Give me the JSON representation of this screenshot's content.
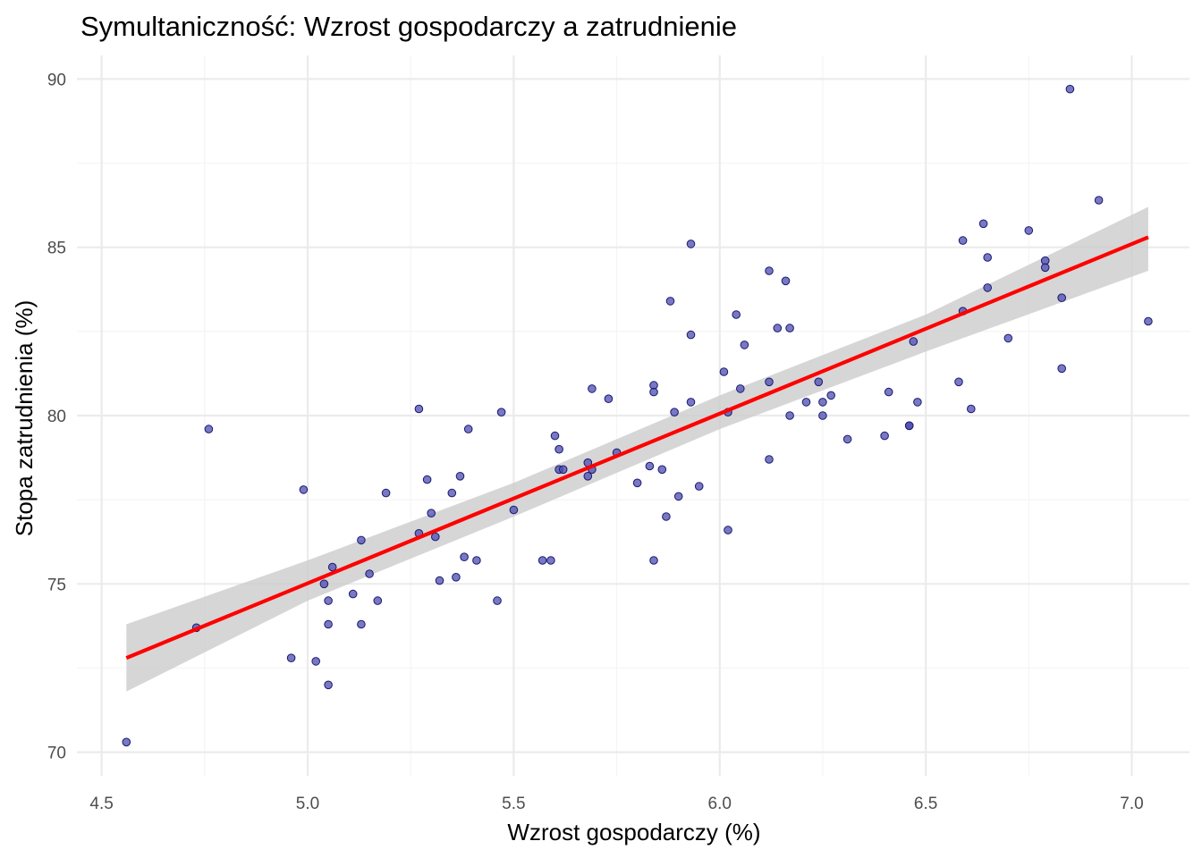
{
  "chart_data": {
    "type": "scatter",
    "title": "Symultaniczność: Wzrost gospodarczy a zatrudnienie",
    "xlabel": "Wzrost gospodarczy (%)",
    "ylabel": "Stopa zatrudnienia (%)",
    "xlim": [
      4.44,
      7.14
    ],
    "ylim": [
      69.3,
      90.7
    ],
    "x_ticks": [
      4.5,
      5.0,
      5.5,
      6.0,
      6.5,
      7.0
    ],
    "x_tick_labels": [
      "4.5",
      "5.0",
      "5.5",
      "6.0",
      "6.5",
      "7.0"
    ],
    "y_ticks": [
      70,
      75,
      80,
      85,
      90
    ],
    "y_tick_labels": [
      "70",
      "75",
      "80",
      "85",
      "90"
    ],
    "grid": true,
    "colors": {
      "points_fill": "#4b4bb0",
      "points_stroke": "#1a1a70",
      "fit_line": "#ff0000",
      "confidence_band": "#cccccc",
      "grid_major": "#ebebeb",
      "grid_minor": "#f4f4f4"
    },
    "fit_line": {
      "x": [
        4.56,
        7.04
      ],
      "y": [
        72.8,
        85.3
      ]
    },
    "confidence_band": {
      "x": [
        4.56,
        5.0,
        5.5,
        6.0,
        6.5,
        7.04
      ],
      "lower": [
        71.8,
        74.5,
        77.0,
        79.6,
        81.9,
        84.3
      ],
      "upper": [
        73.8,
        75.7,
        78.0,
        80.6,
        83.0,
        86.2
      ]
    },
    "series": [
      {
        "points": [
          [
            4.56,
            70.3
          ],
          [
            4.73,
            73.7
          ],
          [
            4.76,
            79.6
          ],
          [
            4.96,
            72.8
          ],
          [
            4.99,
            77.8
          ],
          [
            5.02,
            72.7
          ],
          [
            5.04,
            75.0
          ],
          [
            5.05,
            72.0
          ],
          [
            5.05,
            73.8
          ],
          [
            5.05,
            74.5
          ],
          [
            5.06,
            75.5
          ],
          [
            5.11,
            74.7
          ],
          [
            5.13,
            73.8
          ],
          [
            5.13,
            76.3
          ],
          [
            5.15,
            75.3
          ],
          [
            5.17,
            74.5
          ],
          [
            5.19,
            77.7
          ],
          [
            5.27,
            80.2
          ],
          [
            5.27,
            76.5
          ],
          [
            5.29,
            78.1
          ],
          [
            5.3,
            77.1
          ],
          [
            5.31,
            76.4
          ],
          [
            5.32,
            75.1
          ],
          [
            5.35,
            77.7
          ],
          [
            5.36,
            75.2
          ],
          [
            5.37,
            78.2
          ],
          [
            5.38,
            75.8
          ],
          [
            5.39,
            79.6
          ],
          [
            5.41,
            75.7
          ],
          [
            5.46,
            74.5
          ],
          [
            5.47,
            80.1
          ],
          [
            5.5,
            77.2
          ],
          [
            5.57,
            75.7
          ],
          [
            5.59,
            75.7
          ],
          [
            5.6,
            79.4
          ],
          [
            5.61,
            79.0
          ],
          [
            5.61,
            78.4
          ],
          [
            5.62,
            78.4
          ],
          [
            5.68,
            78.6
          ],
          [
            5.68,
            78.2
          ],
          [
            5.69,
            80.8
          ],
          [
            5.69,
            78.4
          ],
          [
            5.73,
            80.5
          ],
          [
            5.75,
            78.9
          ],
          [
            5.8,
            78.0
          ],
          [
            5.83,
            78.5
          ],
          [
            5.84,
            80.9
          ],
          [
            5.84,
            80.7
          ],
          [
            5.84,
            75.7
          ],
          [
            5.86,
            78.4
          ],
          [
            5.87,
            77.0
          ],
          [
            5.88,
            83.4
          ],
          [
            5.89,
            80.1
          ],
          [
            5.9,
            77.6
          ],
          [
            5.93,
            85.1
          ],
          [
            5.93,
            82.4
          ],
          [
            5.93,
            80.4
          ],
          [
            5.95,
            77.9
          ],
          [
            6.01,
            81.3
          ],
          [
            6.02,
            80.1
          ],
          [
            6.02,
            76.6
          ],
          [
            6.04,
            83.0
          ],
          [
            6.05,
            80.8
          ],
          [
            6.06,
            82.1
          ],
          [
            6.12,
            84.3
          ],
          [
            6.12,
            81.0
          ],
          [
            6.12,
            78.7
          ],
          [
            6.14,
            82.6
          ],
          [
            6.16,
            84.0
          ],
          [
            6.17,
            80.0
          ],
          [
            6.17,
            82.6
          ],
          [
            6.21,
            80.4
          ],
          [
            6.24,
            81.0
          ],
          [
            6.25,
            80.4
          ],
          [
            6.25,
            80.0
          ],
          [
            6.27,
            80.6
          ],
          [
            6.31,
            79.3
          ],
          [
            6.4,
            79.4
          ],
          [
            6.41,
            80.7
          ],
          [
            6.46,
            79.7
          ],
          [
            6.46,
            79.7
          ],
          [
            6.47,
            82.2
          ],
          [
            6.48,
            80.4
          ],
          [
            6.58,
            81.0
          ],
          [
            6.59,
            85.2
          ],
          [
            6.59,
            83.1
          ],
          [
            6.61,
            80.2
          ],
          [
            6.64,
            85.7
          ],
          [
            6.65,
            84.7
          ],
          [
            6.65,
            83.8
          ],
          [
            6.7,
            82.3
          ],
          [
            6.75,
            85.5
          ],
          [
            6.79,
            84.6
          ],
          [
            6.79,
            84.4
          ],
          [
            6.83,
            81.4
          ],
          [
            6.83,
            83.5
          ],
          [
            6.85,
            89.7
          ],
          [
            6.92,
            86.4
          ],
          [
            7.04,
            82.8
          ]
        ]
      }
    ]
  }
}
